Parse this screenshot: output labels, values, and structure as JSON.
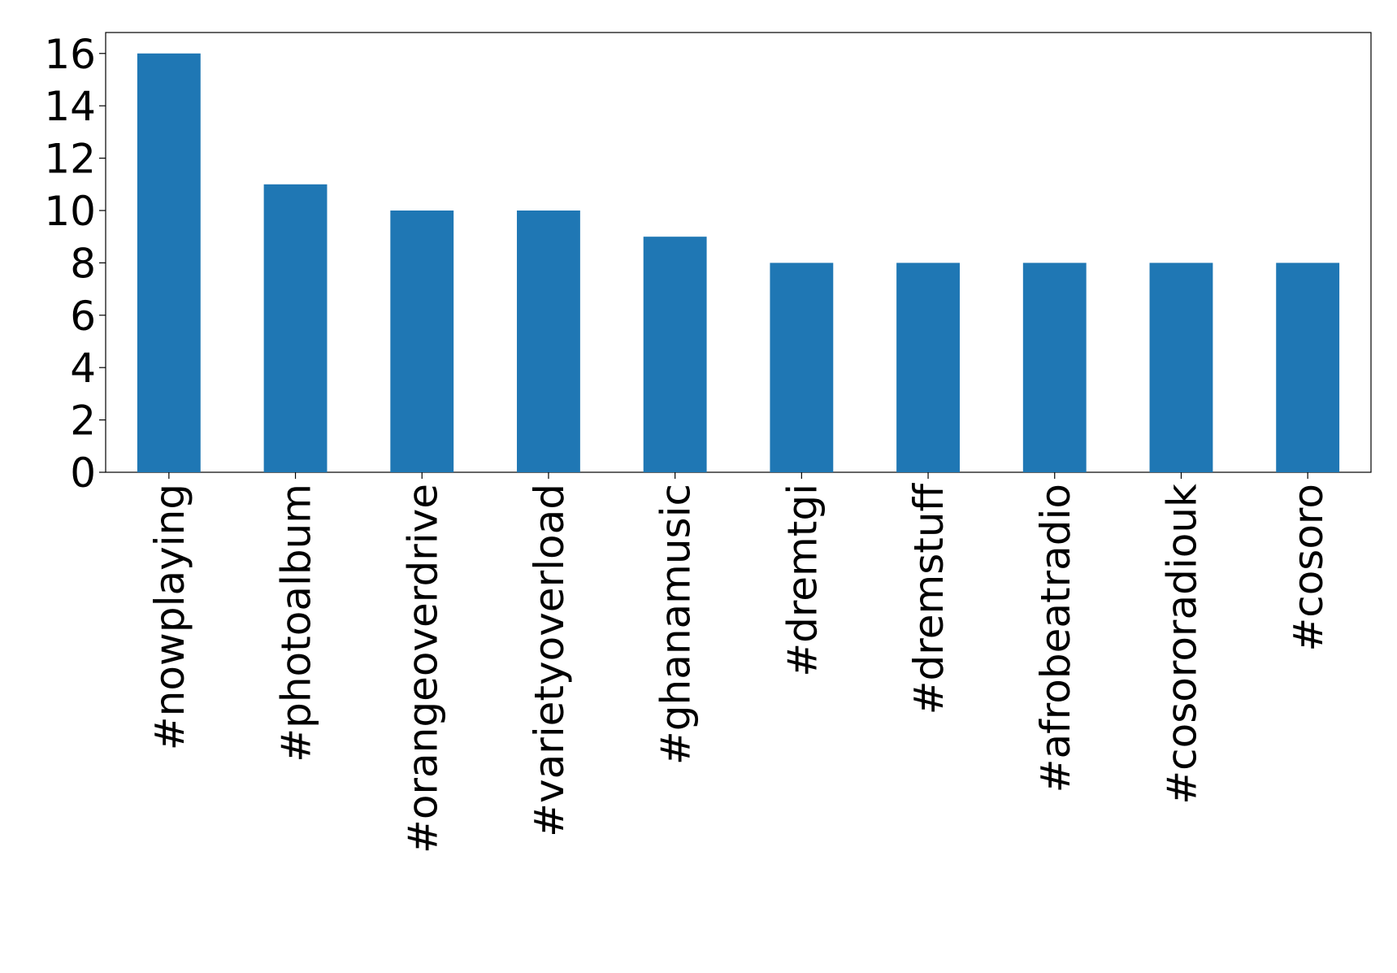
{
  "chart_data": {
    "type": "bar",
    "categories": [
      "#nowplaying",
      "#photoalbum",
      "#orangeoverdrive",
      "#varietyoverload",
      "#ghanamusic",
      "#dremtgi",
      "#dremstuff",
      "#afrobeatradio",
      "#cosororadiouk",
      "#cosoro"
    ],
    "values": [
      16,
      11,
      10,
      10,
      9,
      8,
      8,
      8,
      8,
      8
    ],
    "color": "#1f77b4",
    "ylim": [
      0,
      16.8
    ],
    "yticks": [
      0,
      2,
      4,
      6,
      8,
      10,
      12,
      14,
      16
    ],
    "grid": false
  }
}
